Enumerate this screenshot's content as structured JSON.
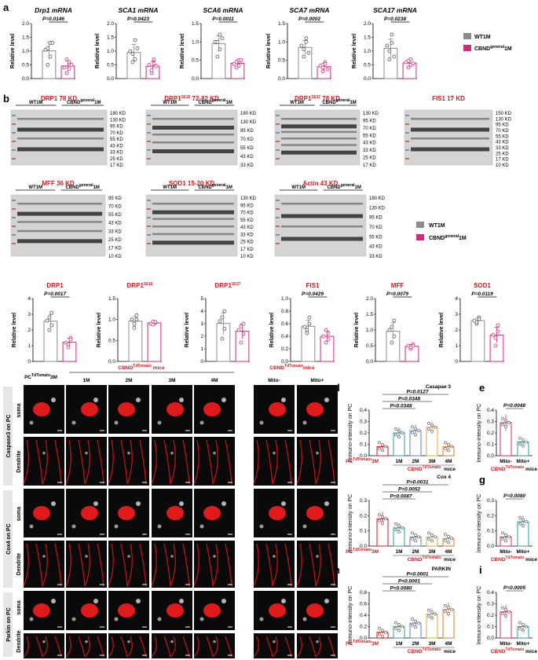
{
  "colors": {
    "wt": "#8c8c8c",
    "cbnd": "#d02a78",
    "red": "#e0161c",
    "teal": "#2f9e9a",
    "blue": "#5b7fd0",
    "gold": "#e0a82c",
    "orange": "#e07a28"
  },
  "panel_labels": [
    "a",
    "b",
    "c",
    "d",
    "e",
    "f",
    "g",
    "h",
    "i"
  ],
  "legend": {
    "wt": "WT1M",
    "cbnd": "CBND",
    "cbnd_sup": "general",
    "cbnd_suffix": "1M"
  },
  "panel_a": {
    "ylabel": "Relative level",
    "charts": [
      {
        "title": "Drp1 mRNA",
        "p": "P=0.0146",
        "ticks": [
          "0.0",
          "0.5",
          "1.0",
          "1.5",
          "2.0"
        ],
        "wt": [
          1.05,
          0.5,
          1.3,
          1.1,
          0.8,
          1.3
        ],
        "cbnd": [
          0.4,
          0.2,
          0.6,
          0.7,
          0.35,
          0.5
        ]
      },
      {
        "title": "SCA1 mRNA",
        "p": "P=0.0423",
        "ticks": [
          "0.0",
          "0.5",
          "1.0",
          "1.5",
          "2.0"
        ],
        "wt": [
          1.0,
          0.6,
          1.4,
          0.9,
          0.7,
          1.1
        ],
        "cbnd": [
          0.5,
          0.2,
          0.7,
          0.3,
          0.55,
          0.45
        ]
      },
      {
        "title": "SCA6 mRNA",
        "p": "P=0.0011",
        "ticks": [
          "0.0",
          "0.5",
          "1.0",
          "1.5"
        ],
        "wt": [
          1.0,
          0.6,
          1.2,
          1.0,
          0.8,
          1.1
        ],
        "cbnd": [
          0.4,
          0.3,
          0.5,
          0.45,
          0.35,
          0.5
        ]
      },
      {
        "title": "SCA7 mRNA",
        "p": "P=0.0002",
        "ticks": [
          "0.0",
          "0.5",
          "1.0",
          "1.5"
        ],
        "wt": [
          0.9,
          0.6,
          1.1,
          0.8,
          1.0,
          0.7
        ],
        "cbnd": [
          0.35,
          0.2,
          0.45,
          0.3,
          0.4,
          0.25
        ]
      },
      {
        "title": "SCA17 mRNA",
        "p": "P=0.0238",
        "ticks": [
          "0.0",
          "0.5",
          "1.0",
          "1.5",
          "2.0"
        ],
        "wt": [
          1.2,
          0.7,
          1.6,
          1.0,
          1.3,
          0.8
        ],
        "cbnd": [
          0.6,
          0.4,
          0.7,
          0.65,
          0.5,
          0.55
        ]
      }
    ]
  },
  "panel_b": {
    "blots": [
      {
        "title": "DRP1",
        "sup": "",
        "kd": "78 KD",
        "kds": [
          "180 KD",
          "130 KD",
          "95 KD",
          "70 KD",
          "55 KD",
          "43 KD",
          "33 KD",
          "25 KD",
          "17 KD"
        ]
      },
      {
        "title": "DRP1",
        "sup": "S616",
        "kd": "72-82 KD",
        "kds": [
          "180 KD",
          "130 KD",
          "95 KD",
          "70 KD",
          "55 KD",
          "43 KD",
          "33 KD"
        ]
      },
      {
        "title": "DRP1",
        "sup": "S637",
        "kd": "78 KD",
        "kds": [
          "130 KD",
          "95 KD",
          "70 KD",
          "55 KD",
          "43 KD",
          "33 KD",
          "25 KD",
          "17 KD"
        ]
      },
      {
        "title": "FIS1",
        "sup": "",
        "kd": "17 KD",
        "kds": [
          "150 KD",
          "130 KD",
          "95 KD",
          "70 KD",
          "55 KD",
          "43 KD",
          "33 KD",
          "25 KD",
          "17 KD",
          "10 KD"
        ]
      },
      {
        "title": "MFF",
        "sup": "",
        "kd": "36 KD",
        "kds": [
          "95 KD",
          "70 KD",
          "55 KD",
          "43 KD",
          "33 KD",
          "25 KD",
          "17 KD",
          "10 KD"
        ]
      },
      {
        "title": "SOD1",
        "sup": "",
        "kd": "15-20 KD",
        "kds": [
          "130 KD",
          "95 KD",
          "70 KD",
          "55 KD",
          "43 KD",
          "33 KD",
          "25 KD",
          "17 KD",
          "10 KD"
        ]
      },
      {
        "title": "Actin",
        "sup": "",
        "kd": "43 KD",
        "kds": [
          "180 KD",
          "130 KD",
          "95 KD",
          "70 KD",
          "55 KD",
          "43 KD",
          "33 KD"
        ]
      }
    ],
    "lane_wt": "WT1M",
    "lane_cbnd": "CBND",
    "lane_cbnd_sup": "general",
    "lane_cbnd_suffix": "1M",
    "ylabel": "Relative level",
    "charts": [
      {
        "title": "DRP1",
        "sup": "",
        "p": "P=0.0017",
        "ticks": [
          "0",
          "1",
          "2",
          "3",
          "4"
        ],
        "max": 4,
        "wt": [
          2.6,
          2.0,
          3.1,
          2.8,
          2.3
        ],
        "cbnd": [
          1.2,
          0.9,
          1.5,
          1.1,
          1.4
        ]
      },
      {
        "title": "DRP1",
        "sup": "S616",
        "p": "",
        "ticks": [
          "0.0",
          "0.5",
          "1.0",
          "1.5"
        ],
        "max": 1.5,
        "wt": [
          1.0,
          0.8,
          1.1,
          0.9,
          1.0
        ],
        "cbnd": [
          0.9,
          0.95,
          0.92,
          0.88,
          0.94
        ]
      },
      {
        "title": "DRP1",
        "sup": "S637",
        "p": "",
        "ticks": [
          "0",
          "1",
          "2",
          "3",
          "4",
          "5"
        ],
        "max": 5,
        "wt": [
          3.2,
          1.8,
          4.0,
          3.5,
          2.6
        ],
        "cbnd": [
          2.5,
          1.5,
          3.0,
          2.8,
          2.2
        ]
      },
      {
        "title": "FIS1",
        "sup": "",
        "p": "P=0.0429",
        "ticks": [
          "0.0",
          "0.2",
          "0.4",
          "0.6",
          "0.8",
          "1.0"
        ],
        "max": 1.0,
        "wt": [
          0.55,
          0.45,
          0.7,
          0.5,
          0.6
        ],
        "cbnd": [
          0.4,
          0.3,
          0.45,
          0.5,
          0.35
        ]
      },
      {
        "title": "MFF",
        "sup": "",
        "p": "P=0.0079",
        "ticks": [
          "0.0",
          "0.5",
          "1.0",
          "1.5",
          "2.0"
        ],
        "max": 2.0,
        "wt": [
          1.0,
          0.6,
          1.3,
          1.1,
          0.8
        ],
        "cbnd": [
          0.5,
          0.4,
          0.55,
          0.45,
          0.5
        ]
      },
      {
        "title": "SOD1",
        "sup": "",
        "p": "P=0.0119",
        "ticks": [
          "0",
          "1",
          "2",
          "3",
          "4"
        ],
        "max": 4,
        "wt": [
          2.6,
          2.4,
          2.8,
          2.5,
          2.7
        ],
        "cbnd": [
          1.7,
          1.0,
          2.3,
          1.5,
          1.9
        ]
      }
    ]
  },
  "panel_c": {
    "pc_label": "PC",
    "pc_sup": "TdTomato",
    "pc_suffix": "3M",
    "group_label": "CBND",
    "group_sup": "TdTomato",
    "group_suffix": " mice",
    "group2_label": "CBND",
    "group2_sup": "TdTomato",
    "group2_suffix": "mice",
    "ages": [
      "1M",
      "2M",
      "3M",
      "4M"
    ],
    "mito": [
      "Mito-",
      "Mito+"
    ],
    "rows": [
      {
        "group": "Caspase3 on PC",
        "sub": [
          "soma",
          "Dendrite"
        ]
      },
      {
        "group": "Cox4 on PC",
        "sub": [
          "soma",
          "Dendrite"
        ]
      },
      {
        "group": "Parkin on PC",
        "sub": [
          "soma",
          "Dendrite"
        ]
      }
    ]
  },
  "panel_dfh": [
    {
      "title": "Casapae 3",
      "ylabel": "Immuno-intensity on PC",
      "ticks": [
        "0.0",
        "0.1",
        "0.2",
        "0.3",
        "0.4"
      ],
      "max": 0.4,
      "means": [
        0.08,
        0.2,
        0.22,
        0.25,
        0.08
      ],
      "pvals": [
        "P=0.0127",
        "P=0.0348",
        "P=0.0348"
      ]
    },
    {
      "title": "Cox 4",
      "ylabel": "Immuno-intensity on PC",
      "ticks": [
        "0.0",
        "0.1",
        "0.2",
        "0.3"
      ],
      "max": 0.3,
      "means": [
        0.18,
        0.12,
        0.06,
        0.06,
        0.05
      ],
      "pvals": [
        "P=0.0031",
        "P=0.0052",
        "P=0.0087"
      ]
    },
    {
      "title": "PARKIN",
      "ylabel": "Immuno-intensity on PC",
      "ticks": [
        "0.0",
        "0.2",
        "0.4",
        "0.6",
        "0.8"
      ],
      "max": 0.8,
      "means": [
        0.1,
        0.2,
        0.26,
        0.42,
        0.5
      ],
      "pvals": [
        "P<0.0001",
        "P<0.0001",
        "P=0.0080"
      ]
    }
  ],
  "panel_dfh_x": {
    "pc": "PC",
    "pc_sup": "TdTomato",
    "pc_age": "3M",
    "ages": [
      "1M",
      "2M",
      "3M",
      "4M"
    ],
    "group": "CBND",
    "group_sup": "TdTomato",
    "group_suffix": "mice"
  },
  "panel_egi": [
    {
      "ylabel": "Immuno-intensity on PC",
      "ticks": [
        "0.0",
        "0.1",
        "0.2",
        "0.3",
        "0.4"
      ],
      "max": 0.4,
      "means": [
        0.29,
        0.12
      ],
      "p": "P=0.0048"
    },
    {
      "ylabel": "Immuno-intensity on PC",
      "ticks": [
        "0.0",
        "0.1",
        "0.2",
        "0.3"
      ],
      "max": 0.3,
      "means": [
        0.06,
        0.16
      ],
      "p": "P=0.0080"
    },
    {
      "ylabel": "Immuno-intensity on PC",
      "ticks": [
        "0.0",
        "0.1",
        "0.2",
        "0.3",
        "0.4"
      ],
      "max": 0.4,
      "means": [
        0.23,
        0.1
      ],
      "p": "P=0.0005"
    }
  ],
  "panel_egi_x": {
    "labels": [
      "Mito-",
      "Mito+"
    ],
    "group": "CBND",
    "group_sup": "TdTomato",
    "group_suffix": "mice"
  }
}
